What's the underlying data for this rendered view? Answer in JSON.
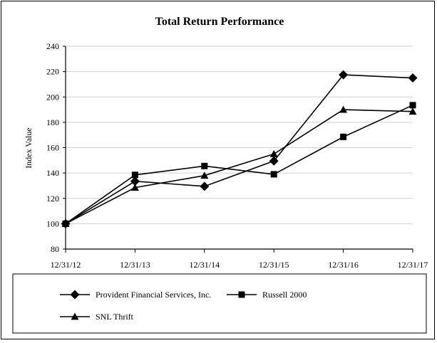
{
  "chart_data": {
    "type": "line",
    "title": "Total Return Performance",
    "xlabel": "",
    "ylabel": "Index Value",
    "categories": [
      "12/31/12",
      "12/31/13",
      "12/31/14",
      "12/31/15",
      "12/31/16",
      "12/31/17"
    ],
    "ylim": [
      80,
      240
    ],
    "yticks": [
      "80",
      "100",
      "120",
      "140",
      "160",
      "180",
      "200",
      "220",
      "240"
    ],
    "grid": true,
    "legend_position": "bottom",
    "series": [
      {
        "name": "Provident Financial Services, Inc.",
        "marker": "diamond",
        "values": [
          100,
          133.5,
          129.5,
          149.5,
          217.5,
          215
        ]
      },
      {
        "name": "Russell 2000",
        "marker": "square",
        "values": [
          100,
          138.5,
          145.5,
          139,
          168.5,
          193.5
        ]
      },
      {
        "name": "SNL Thrift",
        "marker": "triangle",
        "values": [
          100,
          128.5,
          138,
          155,
          190,
          188.5
        ]
      }
    ]
  }
}
